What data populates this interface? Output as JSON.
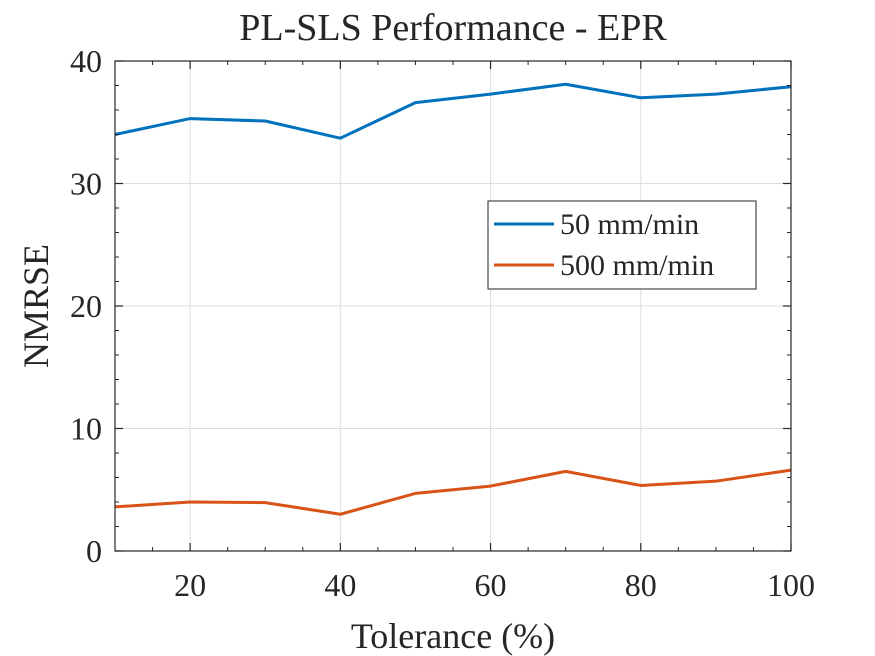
{
  "chart_data": {
    "type": "line",
    "title": "PL-SLS Performance - EPR",
    "xlabel": "Tolerance (%)",
    "ylabel": "NMRSE",
    "xlim": [
      10,
      100
    ],
    "ylim": [
      0,
      40
    ],
    "xticks": [
      20,
      40,
      60,
      80,
      100
    ],
    "yticks": [
      0,
      10,
      20,
      30,
      40
    ],
    "grid": true,
    "legend_position": "right",
    "x": [
      10,
      20,
      30,
      40,
      50,
      60,
      70,
      80,
      90,
      100
    ],
    "series": [
      {
        "name": "50 mm/min",
        "color": "#0072BD",
        "values": [
          34.0,
          35.3,
          35.1,
          33.7,
          36.6,
          37.3,
          38.1,
          37.0,
          37.3,
          37.9
        ]
      },
      {
        "name": "500 mm/min",
        "color": "#D95319",
        "values": [
          3.6,
          4.0,
          3.95,
          3.0,
          4.7,
          5.3,
          6.5,
          5.35,
          5.7,
          6.6
        ]
      }
    ]
  }
}
